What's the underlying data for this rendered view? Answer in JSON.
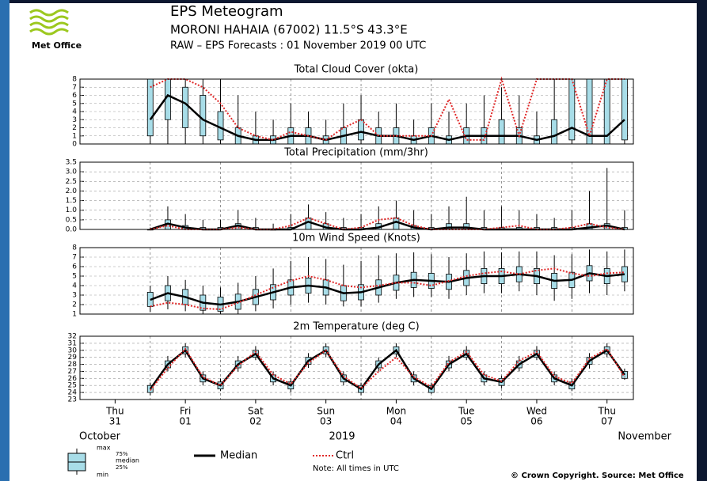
{
  "header": {
    "logo": "Met Office",
    "title": "EPS Meteogram",
    "station": "MORONI HAHAIA (67002) 11.5°S 43.3°E",
    "run": "RAW – EPS Forecasts : 01 November 2019 00 UTC"
  },
  "x_axis": {
    "xlim": [
      0,
      189
    ],
    "xgrid": [
      24,
      48,
      72,
      96,
      120,
      144,
      168
    ],
    "days": [
      {
        "value": 12,
        "weekday": "Thu",
        "day": "31"
      },
      {
        "value": 36,
        "weekday": "Fri",
        "day": "01"
      },
      {
        "value": 60,
        "weekday": "Sat",
        "day": "02"
      },
      {
        "value": 84,
        "weekday": "Sun",
        "day": "03"
      },
      {
        "value": 108,
        "weekday": "Mon",
        "day": "04"
      },
      {
        "value": 132,
        "weekday": "Tue",
        "day": "05"
      },
      {
        "value": 156,
        "weekday": "Wed",
        "day": "06"
      },
      {
        "value": 180,
        "weekday": "Thu",
        "day": "07"
      }
    ],
    "month_left": "October",
    "year": "2019",
    "month_right": "November"
  },
  "chart_data": [
    {
      "type": "box",
      "title": "Total Cloud Cover (okta)",
      "ylim": [
        0,
        8
      ],
      "yticks": [
        0,
        1,
        2,
        3,
        4,
        5,
        6,
        7,
        8
      ],
      "grid": true,
      "x": [
        24,
        30,
        36,
        42,
        48,
        54,
        60,
        66,
        72,
        78,
        84,
        90,
        96,
        102,
        108,
        114,
        120,
        126,
        132,
        138,
        144,
        150,
        156,
        162,
        168,
        174,
        180,
        186
      ],
      "boxes": {
        "min": [
          0,
          0,
          0,
          0,
          0,
          0,
          0,
          0,
          0,
          0,
          0,
          0,
          0,
          0,
          0,
          0,
          0,
          0,
          0,
          0,
          0,
          0,
          0,
          0,
          0,
          0,
          0,
          0
        ],
        "q1": [
          1,
          3,
          2,
          1,
          0.5,
          0,
          0,
          0,
          0,
          0,
          0,
          0,
          0.5,
          0,
          0,
          0,
          0,
          0,
          0,
          0,
          0,
          0,
          0,
          0,
          0.5,
          0,
          0,
          0.5
        ],
        "q3": [
          8,
          8,
          7,
          6,
          4,
          2,
          1,
          1,
          2,
          2,
          1,
          2,
          3,
          2,
          2,
          1,
          2,
          1,
          2,
          2,
          3,
          2,
          1,
          3,
          8,
          8,
          8,
          8
        ],
        "max": [
          8,
          8,
          8,
          8,
          8,
          6,
          4,
          3,
          5,
          4,
          3,
          5,
          6,
          4,
          5,
          3,
          5,
          4,
          5,
          6,
          7,
          6,
          4,
          8,
          8,
          8,
          8,
          8
        ]
      },
      "series": [
        {
          "name": "Median",
          "color": "#000000",
          "values": [
            3,
            6,
            5,
            3,
            2,
            1,
            0.5,
            0.5,
            1,
            1,
            0.5,
            1,
            1.5,
            1,
            1,
            0.5,
            1,
            0.5,
            1,
            1,
            1,
            1,
            0.5,
            1,
            2,
            1,
            1,
            3
          ]
        },
        {
          "name": "Ctrl",
          "color": "#e02828",
          "values": [
            7,
            8,
            8,
            7,
            5,
            2,
            1,
            0.5,
            1.5,
            1,
            0.5,
            2,
            3,
            1,
            1,
            1,
            1,
            5.5,
            0.5,
            0.5,
            8,
            1,
            8,
            8,
            8,
            1,
            8,
            8
          ]
        }
      ]
    },
    {
      "type": "box",
      "title": "Total Precipitation (mm/3hr)",
      "ylim": [
        0,
        3.5
      ],
      "yticks": [
        {
          "value": 0,
          "label": "0.0"
        },
        0.5,
        {
          "value": 1,
          "label": "1.0"
        },
        1.5,
        {
          "value": 2,
          "label": "2.0"
        },
        2.5,
        {
          "value": 3,
          "label": "3.0"
        },
        3.5
      ],
      "grid": true,
      "x": [
        24,
        30,
        36,
        42,
        48,
        54,
        60,
        66,
        72,
        78,
        84,
        90,
        96,
        102,
        108,
        114,
        120,
        126,
        132,
        138,
        144,
        150,
        156,
        162,
        168,
        174,
        180,
        186
      ],
      "boxes": {
        "min": [
          0,
          0,
          0,
          0,
          0,
          0,
          0,
          0,
          0,
          0,
          0,
          0,
          0,
          0,
          0,
          0,
          0,
          0,
          0,
          0,
          0,
          0,
          0,
          0,
          0,
          0,
          0,
          0
        ],
        "q1": [
          0,
          0,
          0,
          0,
          0,
          0,
          0,
          0,
          0,
          0,
          0,
          0,
          0,
          0,
          0,
          0,
          0,
          0,
          0,
          0,
          0,
          0,
          0,
          0,
          0,
          0,
          0,
          0
        ],
        "q3": [
          0,
          0.5,
          0.2,
          0.1,
          0.1,
          0.3,
          0.1,
          0,
          0.1,
          0.6,
          0.3,
          0.1,
          0.1,
          0.3,
          0.6,
          0.2,
          0.1,
          0.3,
          0.3,
          0.1,
          0.1,
          0.1,
          0.1,
          0.1,
          0.1,
          0.3,
          0.3,
          0.1
        ],
        "max": [
          0.1,
          1.2,
          0.8,
          0.5,
          0.5,
          1.0,
          0.6,
          0.3,
          0.8,
          1.3,
          0.9,
          0.6,
          0.8,
          1.2,
          1.5,
          1.0,
          0.8,
          1.2,
          1.7,
          1.0,
          1.2,
          1.0,
          0.8,
          0.6,
          1.0,
          2.0,
          3.2,
          1.0
        ]
      },
      "series": [
        {
          "name": "Median",
          "color": "#000000",
          "values": [
            0,
            0.3,
            0.1,
            0,
            0,
            0.2,
            0,
            0,
            0,
            0.4,
            0.1,
            0,
            0,
            0.1,
            0.4,
            0.1,
            0,
            0.1,
            0.1,
            0,
            0,
            0,
            0,
            0,
            0,
            0.1,
            0.2,
            0
          ]
        },
        {
          "name": "Ctrl",
          "color": "#e02828",
          "values": [
            0,
            0.2,
            0,
            0,
            0,
            0.1,
            0,
            0,
            0.2,
            0.6,
            0.3,
            0,
            0.1,
            0.5,
            0.6,
            0.2,
            0,
            0,
            0,
            0,
            0.1,
            0.2,
            0,
            0,
            0.1,
            0.3,
            0.1,
            0
          ]
        }
      ]
    },
    {
      "type": "box",
      "title": "10m Wind Speed (Knots)",
      "ylim": [
        1,
        8
      ],
      "yticks": [
        1,
        2,
        3,
        4,
        5,
        6,
        7,
        8
      ],
      "grid": true,
      "x": [
        24,
        30,
        36,
        42,
        48,
        54,
        60,
        66,
        72,
        78,
        84,
        90,
        96,
        102,
        108,
        114,
        120,
        126,
        132,
        138,
        144,
        150,
        156,
        162,
        168,
        174,
        180,
        186
      ],
      "boxes": {
        "min": [
          1.2,
          1.5,
          1.3,
          1.0,
          1.0,
          1.0,
          1.3,
          1.6,
          2.0,
          2.2,
          2.0,
          1.8,
          1.8,
          2.2,
          2.6,
          2.8,
          2.8,
          2.6,
          3.0,
          3.2,
          3.2,
          3.4,
          3.0,
          2.4,
          2.6,
          3.2,
          3.0,
          3.4
        ],
        "q1": [
          1.8,
          2.4,
          2.0,
          1.4,
          1.3,
          1.5,
          2.0,
          2.5,
          3.0,
          3.2,
          3.0,
          2.4,
          2.5,
          3.0,
          3.5,
          3.8,
          3.7,
          3.6,
          4.0,
          4.2,
          4.2,
          4.4,
          4.2,
          3.7,
          3.8,
          4.5,
          4.2,
          4.4
        ],
        "q3": [
          3.3,
          4.0,
          3.6,
          3.0,
          2.8,
          3.1,
          3.6,
          4.1,
          4.6,
          4.8,
          4.6,
          4.0,
          4.1,
          4.6,
          5.1,
          5.4,
          5.3,
          5.2,
          5.6,
          5.8,
          5.8,
          6.0,
          5.8,
          5.3,
          5.4,
          6.1,
          5.8,
          6.0
        ],
        "max": [
          4.0,
          5.0,
          4.6,
          4.0,
          3.8,
          4.3,
          5.0,
          5.8,
          6.6,
          7.0,
          6.8,
          6.2,
          6.6,
          7.2,
          7.4,
          7.5,
          7.3,
          7.0,
          7.4,
          7.6,
          7.5,
          7.6,
          7.6,
          7.2,
          7.3,
          7.8,
          7.6,
          7.8
        ]
      },
      "series": [
        {
          "name": "Median",
          "color": "#000000",
          "values": [
            2.5,
            3.2,
            2.8,
            2.2,
            2.0,
            2.3,
            2.8,
            3.3,
            3.8,
            4.0,
            3.8,
            3.2,
            3.3,
            3.8,
            4.3,
            4.6,
            4.5,
            4.4,
            4.8,
            5.0,
            5.0,
            5.2,
            5.0,
            4.5,
            4.6,
            5.3,
            5.0,
            5.2
          ]
        },
        {
          "name": "Ctrl",
          "color": "#e02828",
          "values": [
            1.8,
            2.2,
            2.0,
            1.6,
            1.5,
            2.2,
            3.0,
            3.8,
            4.5,
            5.0,
            4.6,
            4.0,
            3.8,
            4.0,
            4.3,
            4.3,
            4.0,
            4.5,
            5.0,
            5.3,
            5.5,
            5.2,
            5.6,
            5.8,
            5.3,
            5.0,
            5.3,
            5.4
          ]
        }
      ]
    },
    {
      "type": "box",
      "title": "2m Temperature (deg C)",
      "ylim": [
        23,
        32
      ],
      "yticks": [
        23,
        24,
        25,
        26,
        27,
        28,
        29,
        30,
        31,
        32
      ],
      "grid": true,
      "x": [
        24,
        30,
        36,
        42,
        48,
        54,
        60,
        66,
        72,
        78,
        84,
        90,
        96,
        102,
        108,
        114,
        120,
        126,
        132,
        138,
        144,
        150,
        156,
        162,
        168,
        174,
        180,
        186
      ],
      "boxes": {
        "min": [
          23.6,
          27,
          29,
          25,
          24.2,
          27,
          28.6,
          25,
          24,
          27.5,
          29,
          25,
          23.6,
          27,
          29,
          25,
          23.8,
          27,
          28.6,
          25,
          24.6,
          27,
          28.6,
          25,
          24.2,
          27.4,
          29,
          25.8
        ],
        "q1": [
          24,
          27.5,
          29.5,
          25.5,
          24.5,
          27.5,
          29,
          25.5,
          24.5,
          28,
          29.5,
          25.5,
          24,
          27.5,
          29.5,
          25.5,
          24,
          27.5,
          29,
          25.5,
          25,
          27.5,
          29,
          25.5,
          24.5,
          28,
          29.5,
          26
        ],
        "q3": [
          25,
          28.5,
          30.5,
          26.5,
          25.5,
          28.5,
          30,
          26.5,
          25.5,
          29,
          30.5,
          26.5,
          25,
          28.5,
          30.5,
          26.5,
          25,
          28.5,
          30,
          26.5,
          26,
          28.5,
          30,
          26.5,
          25.5,
          29,
          30.5,
          27
        ],
        "max": [
          25.4,
          29.2,
          31,
          27,
          26,
          29.2,
          30.6,
          27,
          26,
          29.6,
          31,
          27,
          25.4,
          29,
          31,
          27,
          25.4,
          29.2,
          30.6,
          27,
          26.4,
          29.2,
          30.6,
          27,
          26,
          29.6,
          31,
          27.4
        ]
      },
      "series": [
        {
          "name": "Median",
          "color": "#000000",
          "values": [
            24.5,
            28,
            30,
            26,
            25,
            28,
            29.5,
            26,
            25,
            28.5,
            30,
            26,
            24.5,
            28,
            30,
            26,
            24.5,
            28,
            29.5,
            26,
            25.5,
            28,
            29.5,
            26,
            25,
            28.5,
            30,
            26.5
          ]
        },
        {
          "name": "Ctrl",
          "color": "#e02828",
          "values": [
            24.3,
            27.5,
            30.2,
            26.2,
            25.0,
            27.8,
            29.8,
            26.5,
            25.2,
            28.2,
            30.0,
            26.3,
            24.6,
            27.0,
            29.0,
            26.2,
            24.8,
            28.3,
            29.8,
            26.5,
            25.6,
            28.5,
            29.8,
            26.3,
            25.3,
            28.8,
            30.2,
            26.2
          ]
        }
      ]
    }
  ],
  "footer": {
    "box_legend": {
      "max": "max",
      "q3": "75%",
      "median": "median",
      "q1": "25%",
      "min": "min"
    },
    "note": "Note: All times in UTC",
    "copyright": "© Crown Copyright. Source: Met Office"
  }
}
